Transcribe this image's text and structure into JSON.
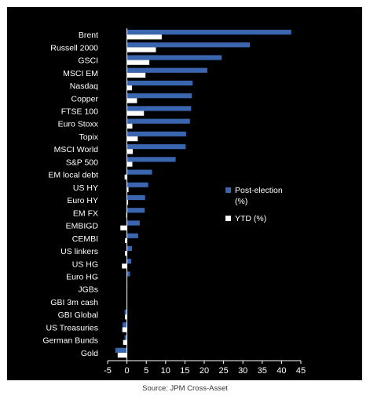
{
  "chart_data": {
    "type": "bar",
    "orientation": "horizontal",
    "categories": [
      "Brent",
      "Russell 2000",
      "GSCI",
      "MSCI EM",
      "Nasdaq",
      "Copper",
      "FTSE 100",
      "Euro Stoxx",
      "Topix",
      "MSCI World",
      "S&P 500",
      "EM local debt",
      "US HY",
      "Euro HY",
      "EM FX",
      "EMBIGD",
      "CEMBI",
      "US linkers",
      "US HG",
      "Euro HG",
      "JGBs",
      "GBI 3m cash",
      "GBI Global",
      "US Treasuries",
      "German Bunds",
      "Gold"
    ],
    "series": [
      {
        "name": "Post-election (%)",
        "color": "#3a66b0",
        "values": [
          42.5,
          31.8,
          24.5,
          20.8,
          17.0,
          16.8,
          16.6,
          16.3,
          15.3,
          15.2,
          12.6,
          6.5,
          5.5,
          4.7,
          4.6,
          3.3,
          2.9,
          1.3,
          1.1,
          0.8,
          0.1,
          0.0,
          -0.6,
          -1.1,
          -0.6,
          -3.0
        ]
      },
      {
        "name": "YTD (%)",
        "color": "#ffffff",
        "values": [
          9.0,
          7.5,
          5.8,
          4.8,
          1.3,
          2.6,
          4.4,
          1.4,
          2.8,
          1.5,
          1.4,
          -0.6,
          0.4,
          0.3,
          -0.2,
          -1.7,
          -0.5,
          -0.5,
          -1.3,
          0.0,
          0.0,
          0.0,
          -0.5,
          -1.2,
          -1.0,
          -2.4
        ]
      }
    ],
    "xlim": [
      -5,
      45
    ],
    "xticks": [
      "-5",
      "0",
      "5",
      "10",
      "15",
      "20",
      "25",
      "30",
      "35",
      "40",
      "45"
    ],
    "legend_position": "right-middle",
    "legend": [
      {
        "label_line1": "Post-election",
        "label_line2": "(%)"
      },
      {
        "label_line1": "YTD (%)",
        "label_line2": ""
      }
    ],
    "grid": false,
    "background": "#000000",
    "text_color": "#ffffff"
  },
  "source": "Source: JPM Cross-Asset"
}
